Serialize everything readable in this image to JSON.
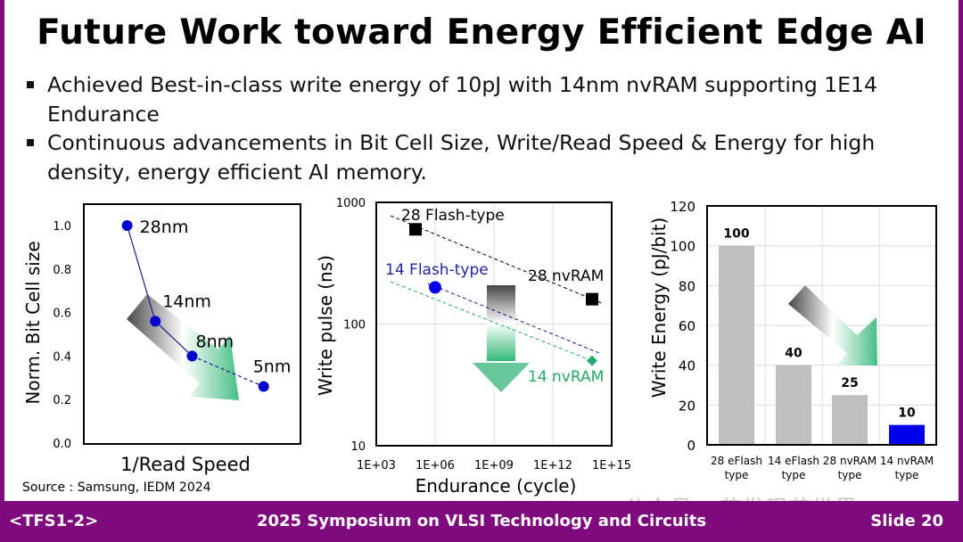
{
  "slide": {
    "title": "Future Work toward Energy Efficient Edge AI",
    "bullets": [
      "Achieved Best-in-class write energy of 10pJ with 14nm nvRAM supporting 1E14 Endurance",
      "Continuous advancements in Bit Cell Size, Write/Read Speed & Energy for high density, energy efficient AI memory."
    ],
    "source": "Source : Samsung, IEDM 2024",
    "watermark": "公众号 · 芯发现芯世界"
  },
  "footer": {
    "session": "<TFS1-2>",
    "conference": "2025 Symposium on VLSI Technology and Circuits",
    "slide": "Slide 20",
    "color": "#7e0a7e"
  },
  "chart_data": [
    {
      "type": "line",
      "xlabel": "1/Read Speed",
      "ylabel": "Norm. Bit Cell size",
      "ylim": [
        0,
        1.1
      ],
      "yticks": [
        "0.0",
        "0.2",
        "0.4",
        "0.6",
        "0.8",
        "1.0"
      ],
      "grid": false,
      "points": [
        {
          "label": "28nm",
          "x": 0.2,
          "y": 1.0
        },
        {
          "label": "14nm",
          "x": 0.33,
          "y": 0.56
        },
        {
          "label": "8nm",
          "x": 0.5,
          "y": 0.4
        },
        {
          "label": "5nm",
          "x": 0.83,
          "y": 0.26
        }
      ],
      "color": "#0000cc",
      "trend_arrow": "down-right"
    },
    {
      "type": "scatter",
      "xlabel": "Endurance (cycle)",
      "ylabel": "Write pulse (ns)",
      "xscale": "log",
      "yscale": "log",
      "xlim": [
        1000.0,
        1000000000000000.0
      ],
      "ylim": [
        10,
        1000
      ],
      "xticks": [
        "1E+03",
        "1E+06",
        "1E+09",
        "1E+12",
        "1E+15"
      ],
      "yticks": [
        "10",
        "100",
        "1000"
      ],
      "grid": true,
      "series": [
        {
          "name": "28 Flash-type",
          "marker": "square",
          "color": "#000000",
          "x": 100000.0,
          "y": 600
        },
        {
          "name": "28 nvRAM",
          "marker": "square",
          "color": "#000000",
          "x": 100000000000000.0,
          "y": 160
        },
        {
          "name": "14 Flash-type",
          "marker": "circle",
          "color": "#0000ee",
          "x": 1000000.0,
          "y": 200
        },
        {
          "name": "14 nvRAM",
          "marker": "diamond",
          "color": "#22aa66",
          "x": 100000000000000.0,
          "y": 50
        }
      ],
      "trend_arrow": "down"
    },
    {
      "type": "bar",
      "ylabel": "Write Energy (pJ/bit)",
      "ylim": [
        0,
        120
      ],
      "yticks": [
        "0",
        "20",
        "40",
        "60",
        "80",
        "100",
        "120"
      ],
      "categories": [
        [
          "28 eFlash",
          "type"
        ],
        [
          "14 eFlash",
          "type"
        ],
        [
          "28 nvRAM",
          "type"
        ],
        [
          "14 nvRAM",
          "type"
        ]
      ],
      "values": [
        100,
        40,
        25,
        10
      ],
      "data_labels": [
        "100",
        "40",
        "25",
        "10"
      ],
      "colors": [
        "#bfbfbf",
        "#bfbfbf",
        "#bfbfbf",
        "#0000ee"
      ],
      "grid": true,
      "trend_arrow": "down-right"
    }
  ]
}
